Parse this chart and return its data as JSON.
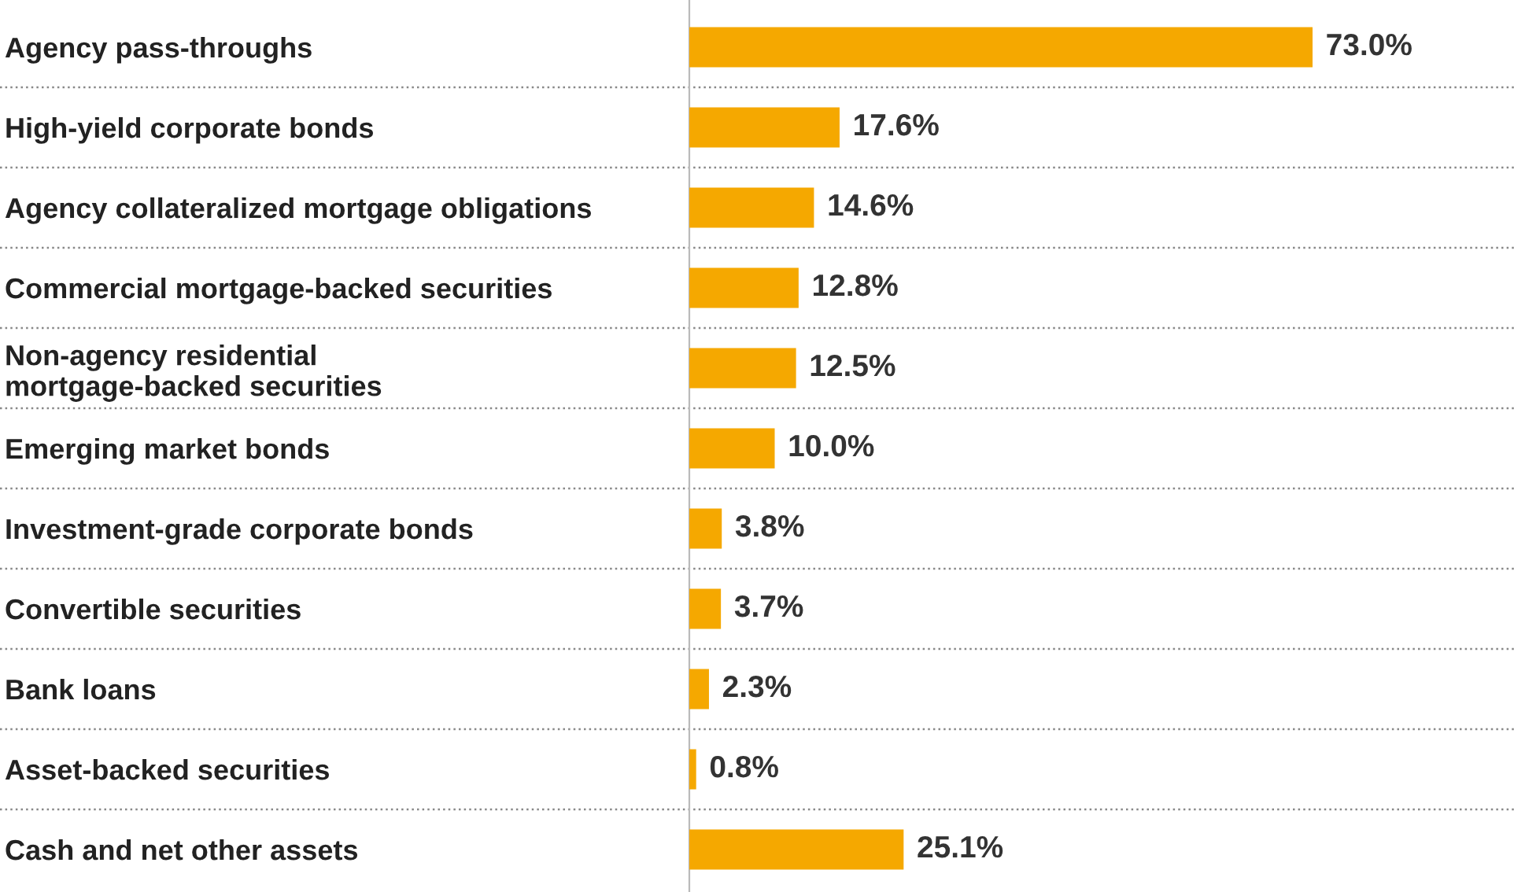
{
  "chart_data": {
    "type": "bar",
    "orientation": "horizontal",
    "categories": [
      "Agency pass-throughs",
      "High-yield corporate bonds",
      "Agency collateralized mortgage obligations",
      "Commercial mortgage-backed securities",
      "Non-agency residential\nmortgage-backed securities",
      "Emerging market bonds",
      "Investment-grade corporate bonds",
      "Convertible securities",
      "Bank loans",
      "Asset-backed securities",
      "Cash and net other assets"
    ],
    "values": [
      73.0,
      17.6,
      14.6,
      12.8,
      12.5,
      10.0,
      3.8,
      3.7,
      2.3,
      0.8,
      25.1
    ],
    "value_labels": [
      "73.0%",
      "17.6%",
      "14.6%",
      "12.8%",
      "12.5%",
      "10.0%",
      "3.8%",
      "3.7%",
      "2.3%",
      "0.8%",
      "25.1%"
    ],
    "color": "#f5a800",
    "grid": "y",
    "line_style": "dotted",
    "legend": false
  }
}
